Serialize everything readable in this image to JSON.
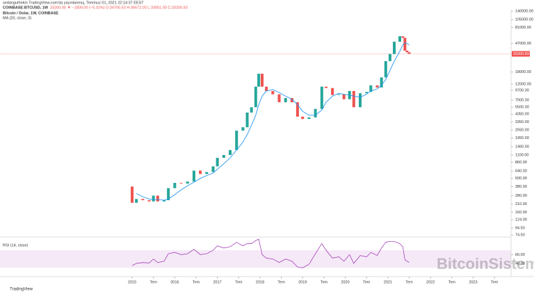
{
  "header": {
    "line1": "sedanguthekin TradingView.com'da yayınlanmış, Temmuz 01, 2021 22:14:37 EEST",
    "symbol": "COINBASE:BTCUSD, 1W",
    "quote": "33200.00 ▼ −1800.00 (−5.31%) O:34700.53 H:36672.00 L:33001.00 C:33200.83"
  },
  "watermark": "BitcoinSistemi",
  "footer": "TradingView",
  "chart_data": [
    {
      "type": "candlestick",
      "title": "Bitcoin / Dolar, 1W, COINBASE",
      "log_scale": true,
      "x": [
        2014.9,
        2015.0,
        2015.1,
        2015.25,
        2015.4,
        2015.5,
        2015.6,
        2015.75,
        2015.85,
        2016.0,
        2016.15,
        2016.3,
        2016.45,
        2016.6,
        2016.75,
        2016.9,
        2017.0,
        2017.15,
        2017.3,
        2017.45,
        2017.6,
        2017.7,
        2017.8,
        2017.9,
        2017.97,
        2018.05,
        2018.15,
        2018.3,
        2018.45,
        2018.6,
        2018.75,
        2018.88,
        2019.0,
        2019.15,
        2019.3,
        2019.45,
        2019.55,
        2019.7,
        2019.85,
        2019.97,
        2020.1,
        2020.2,
        2020.35,
        2020.5,
        2020.6,
        2020.75,
        2020.85,
        2020.95,
        2021.05,
        2021.15,
        2021.28,
        2021.35,
        2021.4,
        2021.45,
        2021.5
      ],
      "values": [
        380,
        220,
        250,
        240,
        230,
        280,
        230,
        240,
        360,
        430,
        420,
        450,
        650,
        580,
        620,
        750,
        1000,
        1100,
        1300,
        2500,
        2800,
        4600,
        5500,
        11000,
        17000,
        11000,
        9500,
        8500,
        6500,
        7500,
        6500,
        4000,
        3700,
        3900,
        5200,
        11000,
        10500,
        8300,
        8500,
        7200,
        9500,
        5500,
        8800,
        9200,
        11500,
        10700,
        15000,
        26000,
        33000,
        50000,
        60000,
        57000,
        37000,
        35000,
        33200
      ],
      "up_color": "#26a69a",
      "down_color": "#ef5350",
      "ma": {
        "name": "MA (20, close, 0)",
        "color": "#2196f3",
        "values": [
          null,
          null,
          300,
          270,
          250,
          245,
          245,
          240,
          250,
          290,
          340,
          390,
          440,
          500,
          550,
          600,
          680,
          820,
          1000,
          1300,
          1700,
          2200,
          3000,
          4200,
          6000,
          8000,
          9500,
          10000,
          9000,
          8000,
          7200,
          6000,
          4800,
          4200,
          4200,
          5000,
          6500,
          8000,
          8800,
          8500,
          8300,
          8000,
          7700,
          8500,
          9500,
          10200,
          11500,
          14000,
          19000,
          26000,
          36000,
          45000,
          48000,
          47000,
          45000
        ]
      },
      "last_price": 33200.83,
      "xlim": [
        2011.9,
        2023.89
      ],
      "xticks": [
        2015,
        {
          "value": 2015.5,
          "label": "Tem"
        },
        2016,
        {
          "value": 2016.5,
          "label": "Tem"
        },
        2017,
        {
          "value": 2017.5,
          "label": "Tem"
        },
        2018,
        {
          "value": 2018.5,
          "label": "Tem"
        },
        2019,
        {
          "value": 2019.5,
          "label": "Tem"
        },
        2020,
        {
          "value": 2020.5,
          "label": "Tem"
        },
        2021,
        {
          "value": 2021.5,
          "label": "Tem"
        },
        2022,
        {
          "value": 2022.5,
          "label": "Tem"
        },
        2023,
        {
          "value": 2023.5,
          "label": "Tem"
        }
      ],
      "ylim": [
        74.5,
        140000
      ],
      "yticks": [
        {
          "value": 140000,
          "label": "140000.00"
        },
        {
          "value": 105000,
          "label": "105000.00"
        },
        {
          "value": 81000,
          "label": "81000.00"
        },
        {
          "value": 47000,
          "label": "47000.00"
        },
        {
          "value": 18000,
          "label": "18000.00"
        },
        {
          "value": 12000,
          "label": "12000.00"
        },
        {
          "value": 9700,
          "label": "9700.00"
        },
        {
          "value": 7000,
          "label": "7000.00"
        },
        {
          "value": 5500,
          "label": "5500.00"
        },
        {
          "value": 4350,
          "label": "4350.00"
        },
        {
          "value": 3350,
          "label": "3350.00"
        },
        {
          "value": 2550,
          "label": "2550.00"
        },
        {
          "value": 1950,
          "label": "1950.00"
        },
        {
          "value": 1460,
          "label": "1460.00"
        },
        {
          "value": 1100,
          "label": "1100.00"
        },
        {
          "value": 860,
          "label": "860.00"
        },
        {
          "value": 640,
          "label": "640.00"
        },
        {
          "value": 500,
          "label": "500.00"
        },
        {
          "value": 380,
          "label": "380.00"
        },
        {
          "value": 280,
          "label": "280.00"
        },
        {
          "value": 210,
          "label": "210.00"
        },
        {
          "value": 160,
          "label": "160.00"
        },
        {
          "value": 124,
          "label": "124.00"
        },
        {
          "value": 94.5,
          "label": "94.50"
        },
        {
          "value": 74.5,
          "label": "74.50"
        }
      ]
    },
    {
      "type": "line",
      "title": "RSI (14, close)",
      "color": "#9c27b0",
      "band": [
        30,
        70
      ],
      "band_color": "rgba(156,39,176,0.10)",
      "values": [
        null,
        35,
        40,
        42,
        41,
        50,
        42,
        45,
        62,
        65,
        60,
        62,
        72,
        60,
        62,
        70,
        80,
        75,
        78,
        88,
        80,
        85,
        85,
        92,
        95,
        60,
        52,
        50,
        42,
        50,
        45,
        32,
        30,
        38,
        62,
        85,
        70,
        52,
        55,
        45,
        60,
        40,
        58,
        55,
        65,
        58,
        75,
        88,
        90,
        90,
        85,
        78,
        48,
        45,
        42
      ],
      "ylim": [
        10,
        100
      ],
      "yticks": [
        {
          "value": 60,
          "label": "60.00"
        },
        {
          "value": 40,
          "label": "40.00"
        }
      ]
    }
  ]
}
